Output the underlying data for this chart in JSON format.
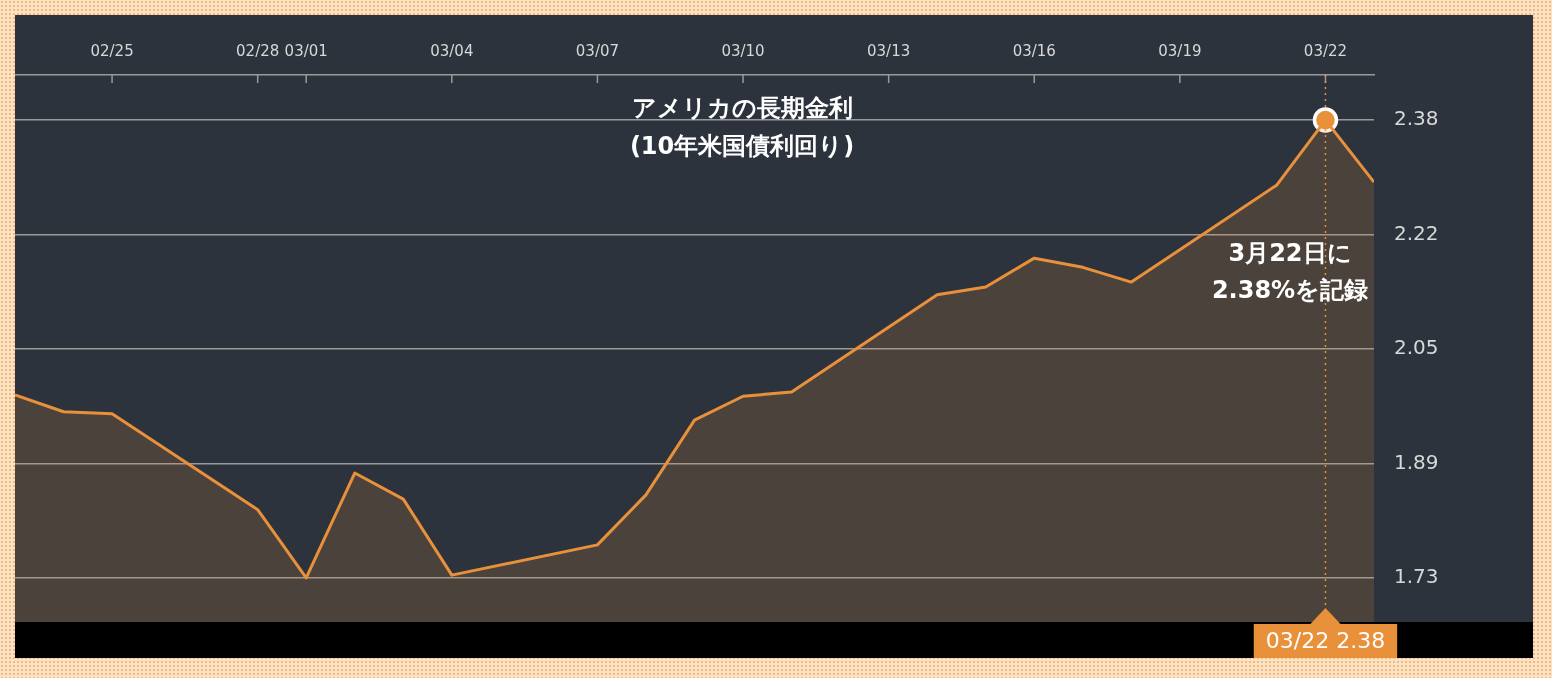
{
  "chart_data": {
    "type": "area",
    "title": "アメリカの長期金利",
    "subtitle": "(10年米国債利回り)",
    "x": [
      "--02-23",
      "--02-24",
      "--02-25",
      "--02-28",
      "--03-01",
      "--03-02",
      "--03-03",
      "--03-04",
      "--03-07",
      "--03-08",
      "--03-09",
      "--03-10",
      "--03-11",
      "--03-14",
      "--03-15",
      "--03-16",
      "--03-17",
      "--03-18",
      "--03-21",
      "--03-22",
      "--03-23"
    ],
    "series": [
      {
        "color": "#e8913a",
        "values": [
          1.99,
          1.966,
          1.963,
          1.827,
          1.73,
          1.879,
          1.842,
          1.734,
          1.777,
          1.848,
          1.954,
          1.988,
          1.994,
          2.132,
          2.143,
          2.184,
          2.171,
          2.15,
          2.288,
          2.38,
          2.292
        ]
      },
      {
        "type": "scatter",
        "marker": "circle",
        "color": "#e8913a",
        "x": [
          "--03-22"
        ],
        "values": [
          2.38
        ]
      }
    ],
    "xlim": [
      "--02-23",
      "--03-23"
    ],
    "xticks": [
      {
        "value": "--02-25",
        "label": "02/25"
      },
      {
        "value": "--02-28",
        "label": "02/28"
      },
      {
        "value": "--03-01",
        "label": "03/01"
      },
      {
        "value": "--03-04",
        "label": "03/04"
      },
      {
        "value": "--03-07",
        "label": "03/07"
      },
      {
        "value": "--03-10",
        "label": "03/10"
      },
      {
        "value": "--03-13",
        "label": "03/13"
      },
      {
        "value": "--03-16",
        "label": "03/16"
      },
      {
        "value": "--03-19",
        "label": "03/19"
      },
      {
        "value": "--03-22",
        "label": "03/22"
      }
    ],
    "ylim": [
      1.6675,
      2.444
    ],
    "yticks": [
      {
        "value": 1.73,
        "label": "1.73"
      },
      {
        "value": 1.8925,
        "label": "1.89"
      },
      {
        "value": 2.055,
        "label": "2.05"
      },
      {
        "value": 2.2175,
        "label": "2.22"
      },
      {
        "value": 2.38,
        "label": "2.38"
      }
    ],
    "grid": "y",
    "legend": false,
    "marker": "none",
    "ref_lines": [
      {
        "axis": "x",
        "value": "--03-22",
        "label": "03/22 2.38",
        "color": "#e8913a",
        "line_style": "dotted"
      }
    ],
    "annotations": [
      "3月22日に\n2.38%を記録"
    ]
  }
}
